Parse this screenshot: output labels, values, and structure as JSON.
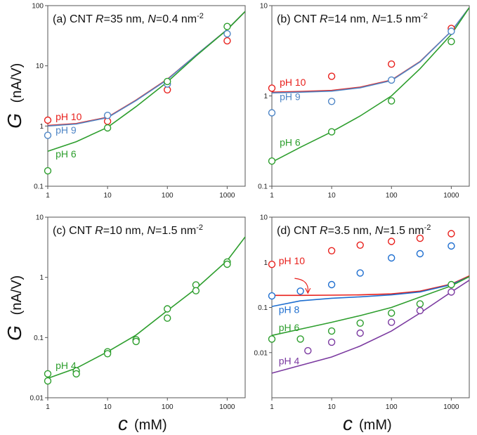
{
  "figure": {
    "ylabel": {
      "symbol": "G",
      "unit": "(nA/V)"
    },
    "xlabel": {
      "symbol": "c",
      "unit": "(mM)"
    }
  },
  "chart_data": [
    {
      "id": "a",
      "type": "scatter",
      "title": {
        "prefix": "(a) CNT ",
        "r_var": "R",
        "r_val": "=35 nm, ",
        "n_var": "N",
        "n_val": "=0.4 nm",
        "sup": "-2"
      },
      "x_scale": "log",
      "y_scale": "log",
      "xlim": [
        1,
        2000
      ],
      "ylim": [
        0.1,
        100
      ],
      "xticks": [
        "1",
        "10",
        "100",
        "1000"
      ],
      "yticks": [
        "0.1",
        "1",
        "10",
        "100"
      ],
      "series": [
        {
          "name": "pH 10",
          "color": "#e8201c",
          "points": [
            [
              1,
              1.25
            ],
            [
              10,
              1.2
            ],
            [
              100,
              4.0
            ],
            [
              1000,
              26
            ]
          ],
          "curve": [
            [
              1,
              1.02
            ],
            [
              3,
              1.1
            ],
            [
              10,
              1.4
            ],
            [
              30,
              2.7
            ],
            [
              100,
              6.0
            ],
            [
              300,
              15
            ],
            [
              1000,
              40
            ],
            [
              2000,
              80
            ]
          ]
        },
        {
          "name": "pH 9",
          "color": "#4f86c6",
          "points": [
            [
              1,
              0.7
            ],
            [
              10,
              1.5
            ],
            [
              100,
              5.0
            ],
            [
              1000,
              34
            ]
          ],
          "curve": [
            [
              1,
              1.0
            ],
            [
              3,
              1.08
            ],
            [
              10,
              1.38
            ],
            [
              30,
              2.65
            ],
            [
              100,
              5.9
            ],
            [
              300,
              15
            ],
            [
              1000,
              40
            ],
            [
              2000,
              80
            ]
          ]
        },
        {
          "name": "pH 6",
          "color": "#2d9e2d",
          "points": [
            [
              1,
              0.18
            ],
            [
              10,
              0.93
            ],
            [
              100,
              5.5
            ],
            [
              1000,
              45
            ]
          ],
          "curve": [
            [
              1,
              0.38
            ],
            [
              3,
              0.55
            ],
            [
              10,
              0.95
            ],
            [
              30,
              2.1
            ],
            [
              100,
              5.4
            ],
            [
              300,
              14.5
            ],
            [
              1000,
              40
            ],
            [
              2000,
              80
            ]
          ]
        }
      ],
      "series_labels": [
        {
          "text": "pH 10",
          "color": "#e8201c",
          "x": 1.35,
          "y": 1.25
        },
        {
          "text": "pH 9",
          "color": "#4f86c6",
          "x": 1.35,
          "y": 0.75
        },
        {
          "text": "pH 6",
          "color": "#2d9e2d",
          "x": 1.35,
          "y": 0.3
        }
      ]
    },
    {
      "id": "b",
      "type": "scatter",
      "title": {
        "prefix": "(b) CNT ",
        "r_var": "R",
        "r_val": "=14 nm, ",
        "n_var": "N",
        "n_val": "=1.5 nm",
        "sup": "-2"
      },
      "x_scale": "log",
      "y_scale": "log",
      "xlim": [
        1,
        2000
      ],
      "ylim": [
        0.1,
        10
      ],
      "xticks": [
        "1",
        "10",
        "100",
        "1000"
      ],
      "yticks": [
        "0.1",
        "1",
        "10"
      ],
      "series": [
        {
          "name": "pH 10",
          "color": "#e8201c",
          "points": [
            [
              1,
              1.22
            ],
            [
              10,
              1.65
            ],
            [
              100,
              2.25
            ],
            [
              1000,
              5.6
            ]
          ],
          "curve": [
            [
              1,
              1.1
            ],
            [
              3,
              1.12
            ],
            [
              10,
              1.15
            ],
            [
              30,
              1.25
            ],
            [
              100,
              1.5
            ],
            [
              300,
              2.4
            ],
            [
              1000,
              5.2
            ],
            [
              2000,
              9.5
            ]
          ]
        },
        {
          "name": "pH 9",
          "color": "#4f86c6",
          "points": [
            [
              1,
              0.65
            ],
            [
              10,
              0.87
            ],
            [
              100,
              1.5
            ],
            [
              1000,
              5.2
            ]
          ],
          "curve": [
            [
              1,
              1.08
            ],
            [
              3,
              1.1
            ],
            [
              10,
              1.13
            ],
            [
              30,
              1.23
            ],
            [
              100,
              1.48
            ],
            [
              300,
              2.38
            ],
            [
              1000,
              5.2
            ],
            [
              2000,
              9.5
            ]
          ]
        },
        {
          "name": "pH 6",
          "color": "#2d9e2d",
          "points": [
            [
              1,
              0.19
            ],
            [
              10,
              0.4
            ],
            [
              100,
              0.88
            ],
            [
              1000,
              4.0
            ]
          ],
          "curve": [
            [
              1,
              0.185
            ],
            [
              3,
              0.27
            ],
            [
              10,
              0.4
            ],
            [
              30,
              0.6
            ],
            [
              100,
              1.0
            ],
            [
              300,
              2.0
            ],
            [
              1000,
              4.8
            ],
            [
              2000,
              9.5
            ]
          ]
        }
      ],
      "series_labels": [
        {
          "text": "pH 10",
          "color": "#e8201c",
          "x": 1.35,
          "y": 1.3
        },
        {
          "text": "pH 9",
          "color": "#4f86c6",
          "x": 1.35,
          "y": 0.9
        },
        {
          "text": "pH 6",
          "color": "#2d9e2d",
          "x": 1.35,
          "y": 0.28
        }
      ]
    },
    {
      "id": "c",
      "type": "scatter",
      "title": {
        "prefix": "(c) CNT ",
        "r_var": "R",
        "r_val": "=10 nm, ",
        "n_var": "N",
        "n_val": "=1.5 nm",
        "sup": "-2"
      },
      "x_scale": "log",
      "y_scale": "log",
      "xlim": [
        1,
        2000
      ],
      "ylim": [
        0.01,
        10
      ],
      "xticks": [
        "1",
        "10",
        "100",
        "1000"
      ],
      "yticks": [
        "0.01",
        "0.1",
        "1",
        "10"
      ],
      "series": [
        {
          "name": "pH 4",
          "color": "#2d9e2d",
          "points": [
            [
              1,
              0.025
            ],
            [
              1,
              0.019
            ],
            [
              3,
              0.028
            ],
            [
              3,
              0.025
            ],
            [
              10,
              0.058
            ],
            [
              10,
              0.054
            ],
            [
              30,
              0.092
            ],
            [
              30,
              0.086
            ],
            [
              100,
              0.3
            ],
            [
              100,
              0.21
            ],
            [
              300,
              0.75
            ],
            [
              300,
              0.6
            ],
            [
              1000,
              1.8
            ],
            [
              1000,
              1.65
            ]
          ],
          "curve": [
            [
              1,
              0.021
            ],
            [
              3,
              0.031
            ],
            [
              10,
              0.058
            ],
            [
              30,
              0.11
            ],
            [
              100,
              0.28
            ],
            [
              300,
              0.65
            ],
            [
              1000,
              1.9
            ],
            [
              2000,
              4.7
            ]
          ]
        }
      ],
      "series_labels": [
        {
          "text": "pH 4",
          "color": "#2d9e2d",
          "x": 1.35,
          "y": 0.03
        }
      ]
    },
    {
      "id": "d",
      "type": "scatter",
      "title": {
        "prefix": "(d) CNT ",
        "r_var": "R",
        "r_val": "=3.5 nm, ",
        "n_var": "N",
        "n_val": "=1.5 nm",
        "sup": "-2"
      },
      "x_scale": "log",
      "y_scale": "log",
      "xlim": [
        1,
        2000
      ],
      "ylim": [
        0.001,
        10
      ],
      "xticks": [
        "1",
        "10",
        "100",
        "1000"
      ],
      "yticks": [
        "0.01",
        "0.1",
        "1",
        "10"
      ],
      "series": [
        {
          "name": "pH 10",
          "color": "#e8201c",
          "points": [
            [
              1,
              0.9
            ],
            [
              10,
              1.8
            ],
            [
              30,
              2.4
            ],
            [
              100,
              2.9
            ],
            [
              300,
              3.4
            ],
            [
              1000,
              4.3
            ]
          ],
          "curve": [
            [
              1,
              0.185
            ],
            [
              3,
              0.185
            ],
            [
              10,
              0.187
            ],
            [
              30,
              0.19
            ],
            [
              100,
              0.2
            ],
            [
              300,
              0.23
            ],
            [
              1000,
              0.33
            ],
            [
              2000,
              0.5
            ]
          ]
        },
        {
          "name": "pH 8",
          "color": "#1f6fd0",
          "points": [
            [
              1,
              0.18
            ],
            [
              3,
              0.23
            ],
            [
              10,
              0.32
            ],
            [
              30,
              0.58
            ],
            [
              100,
              1.25
            ],
            [
              300,
              1.55
            ],
            [
              1000,
              2.3
            ]
          ],
          "curve": [
            [
              1,
              0.105
            ],
            [
              3,
              0.14
            ],
            [
              10,
              0.16
            ],
            [
              30,
              0.172
            ],
            [
              100,
              0.19
            ],
            [
              300,
              0.22
            ],
            [
              1000,
              0.32
            ],
            [
              2000,
              0.48
            ]
          ]
        },
        {
          "name": "pH 6",
          "color": "#2d9e2d",
          "points": [
            [
              1,
              0.02
            ],
            [
              3,
              0.02
            ],
            [
              10,
              0.03
            ],
            [
              30,
              0.045
            ],
            [
              100,
              0.075
            ],
            [
              300,
              0.12
            ],
            [
              1000,
              0.32
            ]
          ],
          "curve": [
            [
              1,
              0.024
            ],
            [
              3,
              0.033
            ],
            [
              10,
              0.047
            ],
            [
              30,
              0.066
            ],
            [
              100,
              0.1
            ],
            [
              300,
              0.17
            ],
            [
              1000,
              0.3
            ],
            [
              2000,
              0.48
            ]
          ]
        },
        {
          "name": "pH 4",
          "color": "#7b3aa0",
          "points": [
            [
              4,
              0.011
            ],
            [
              10,
              0.017
            ],
            [
              30,
              0.027
            ],
            [
              100,
              0.047
            ],
            [
              300,
              0.085
            ],
            [
              1000,
              0.22
            ]
          ],
          "curve": [
            [
              1,
              0.0035
            ],
            [
              3,
              0.0052
            ],
            [
              10,
              0.008
            ],
            [
              30,
              0.014
            ],
            [
              100,
              0.03
            ],
            [
              300,
              0.075
            ],
            [
              1000,
              0.22
            ],
            [
              2000,
              0.4
            ]
          ]
        }
      ],
      "series_labels": [
        {
          "text": "pH 10",
          "color": "#e8201c",
          "x": 1.3,
          "y": 0.9
        },
        {
          "text": "pH 8",
          "color": "#1f6fd0",
          "x": 1.3,
          "y": 0.075
        },
        {
          "text": "pH 6",
          "color": "#2d9e2d",
          "x": 1.3,
          "y": 0.03
        },
        {
          "text": "pH 4",
          "color": "#7b3aa0",
          "x": 1.3,
          "y": 0.0055
        }
      ],
      "annotation": {
        "from": [
          2.4,
          0.44
        ],
        "to": [
          4,
          0.2
        ],
        "color": "#e8201c"
      }
    }
  ]
}
